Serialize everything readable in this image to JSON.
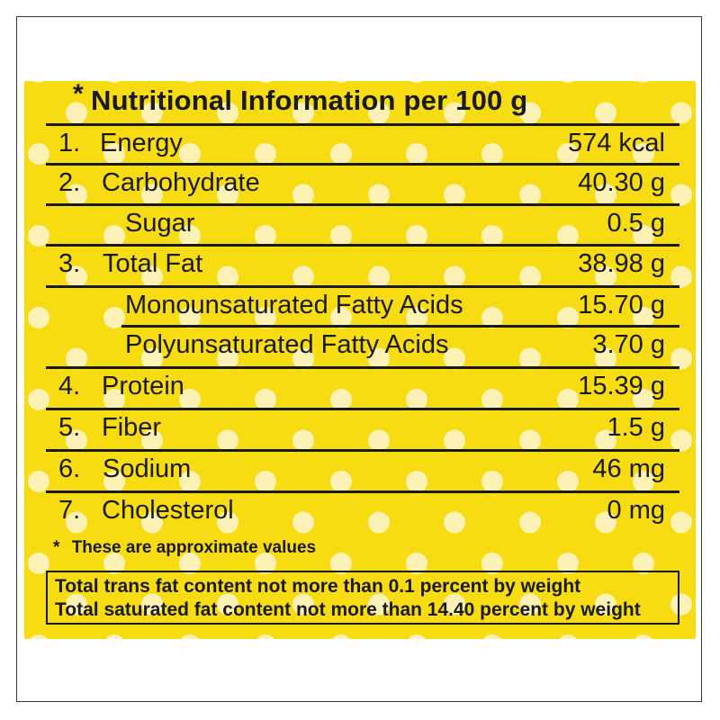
{
  "colors": {
    "background": "#f8dc12",
    "dot": "#fdf2b5",
    "text": "#1a1a1a"
  },
  "title": {
    "asterisk": "*",
    "text": "Nutritional Information per 100 g"
  },
  "rows": [
    {
      "num": "1.",
      "label": "Energy",
      "value": "574 kcal"
    },
    {
      "num": "2.",
      "label": "Carbohydrate",
      "value": "40.30 g"
    },
    {
      "num": "",
      "label": "Sugar",
      "value": "0.5 g"
    },
    {
      "num": "3.",
      "label": "Total Fat",
      "value": "38.98 g"
    },
    {
      "num": "",
      "label": "Monounsaturated Fatty Acids",
      "value": "15.70 g"
    },
    {
      "num": "",
      "label": "Polyunsaturated Fatty Acids",
      "value": "3.70 g"
    },
    {
      "num": "4.",
      "label": "Protein",
      "value": "15.39 g"
    },
    {
      "num": "5.",
      "label": "Fiber",
      "value": "1.5 g"
    },
    {
      "num": "6.",
      "label": "Sodium",
      "value": "46 mg"
    },
    {
      "num": "7.",
      "label": "Cholesterol",
      "value": "0 mg"
    }
  ],
  "footnote": {
    "asterisk": "*",
    "text": "These are approximate values"
  },
  "box": {
    "line1": "Total trans fat content not more than 0.1 percent by weight",
    "line2": "Total saturated fat content not more than 14.40 percent by weight"
  }
}
